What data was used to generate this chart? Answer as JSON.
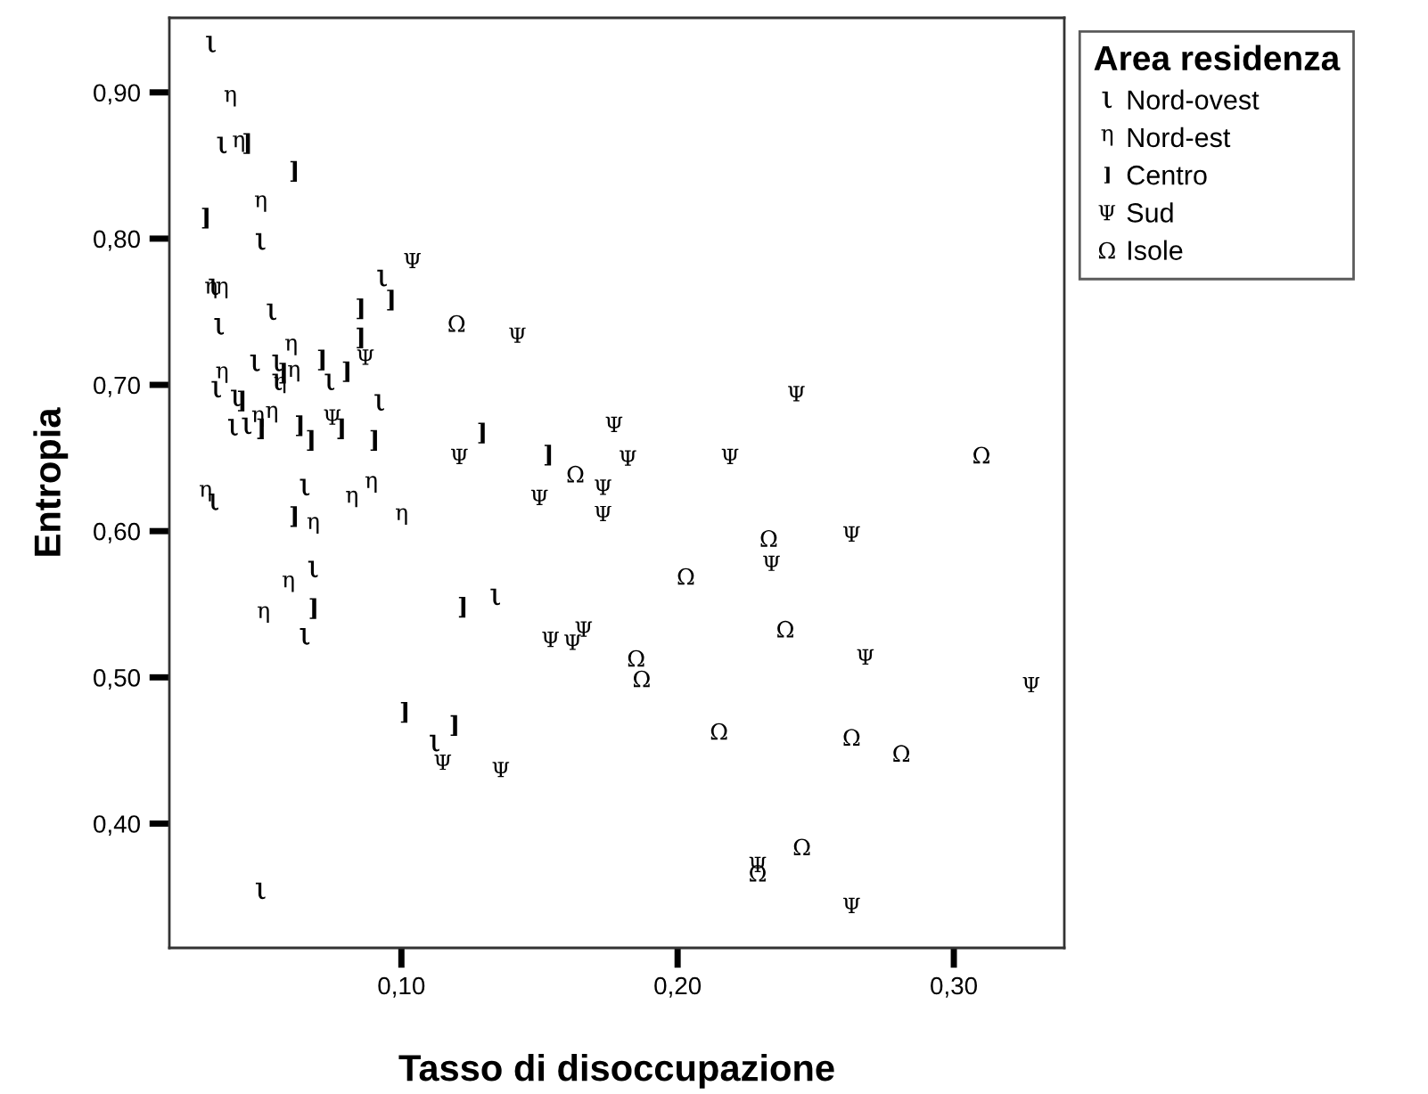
{
  "chart_data": {
    "type": "scatter",
    "xlabel": "Tasso di disoccupazione",
    "ylabel": "Entropia",
    "legend_title": "Area residenza",
    "legend": "top right",
    "grid": false,
    "xlim": [
      0.016,
      0.34
    ],
    "ylim": [
      0.315,
      0.951
    ],
    "xticks": [
      {
        "value": 0.1,
        "label": "0,10"
      },
      {
        "value": 0.2,
        "label": "0,20"
      },
      {
        "value": 0.3,
        "label": "0,30"
      }
    ],
    "yticks": [
      {
        "value": 0.4,
        "label": "0,40"
      },
      {
        "value": 0.5,
        "label": "0,50"
      },
      {
        "value": 0.6,
        "label": "0,60"
      },
      {
        "value": 0.7,
        "label": "0,70"
      },
      {
        "value": 0.8,
        "label": "0,80"
      },
      {
        "value": 0.9,
        "label": "0,90"
      }
    ],
    "series": [
      {
        "name": "Nord-ovest",
        "color": "#000000",
        "x": [
          0.031,
          0.035,
          0.049,
          0.093,
          0.032,
          0.053,
          0.034,
          0.047,
          0.055,
          0.033,
          0.055,
          0.074,
          0.04,
          0.092,
          0.039,
          0.044,
          0.032,
          0.065,
          0.068,
          0.065,
          0.134,
          0.112,
          0.049
        ],
        "values": [
          0.933,
          0.864,
          0.798,
          0.773,
          0.767,
          0.75,
          0.74,
          0.715,
          0.715,
          0.697,
          0.702,
          0.702,
          0.691,
          0.688,
          0.671,
          0.672,
          0.62,
          0.63,
          0.574,
          0.528,
          0.555,
          0.455,
          0.354
        ]
      },
      {
        "name": "Nord-est",
        "color": "#000000",
        "x": [
          0.038,
          0.041,
          0.049,
          0.031,
          0.035,
          0.06,
          0.035,
          0.061,
          0.056,
          0.048,
          0.053,
          0.029,
          0.089,
          0.082,
          0.068,
          0.1,
          0.059,
          0.05
        ],
        "values": [
          0.896,
          0.865,
          0.824,
          0.765,
          0.765,
          0.726,
          0.707,
          0.708,
          0.7,
          0.677,
          0.68,
          0.626,
          0.632,
          0.622,
          0.604,
          0.61,
          0.564,
          0.543
        ]
      },
      {
        "name": "Centro",
        "color": "#000000",
        "x": [
          0.044,
          0.061,
          0.029,
          0.096,
          0.085,
          0.085,
          0.071,
          0.08,
          0.057,
          0.042,
          0.049,
          0.063,
          0.067,
          0.078,
          0.09,
          0.061,
          0.068,
          0.122,
          0.129,
          0.153,
          0.101,
          0.119
        ],
        "values": [
          0.865,
          0.846,
          0.814,
          0.758,
          0.752,
          0.732,
          0.717,
          0.709,
          0.708,
          0.689,
          0.67,
          0.672,
          0.662,
          0.67,
          0.662,
          0.61,
          0.547,
          0.548,
          0.667,
          0.652,
          0.476,
          0.467
        ]
      },
      {
        "name": "Sud",
        "color": "#000000",
        "x": [
          0.104,
          0.087,
          0.075,
          0.121,
          0.142,
          0.177,
          0.182,
          0.219,
          0.173,
          0.15,
          0.173,
          0.234,
          0.154,
          0.162,
          0.166,
          0.115,
          0.136,
          0.229,
          0.243,
          0.263,
          0.268,
          0.328,
          0.263
        ],
        "values": [
          0.785,
          0.719,
          0.678,
          0.651,
          0.734,
          0.673,
          0.65,
          0.651,
          0.63,
          0.623,
          0.612,
          0.578,
          0.526,
          0.524,
          0.533,
          0.442,
          0.437,
          0.372,
          0.694,
          0.598,
          0.514,
          0.495,
          0.344
        ]
      },
      {
        "name": "Isole",
        "color": "#000000",
        "x": [
          0.12,
          0.163,
          0.233,
          0.203,
          0.185,
          0.187,
          0.215,
          0.229,
          0.31,
          0.239,
          0.263,
          0.281,
          0.245
        ],
        "values": [
          0.742,
          0.639,
          0.595,
          0.569,
          0.513,
          0.499,
          0.463,
          0.366,
          0.652,
          0.533,
          0.459,
          0.448,
          0.384
        ]
      }
    ]
  }
}
